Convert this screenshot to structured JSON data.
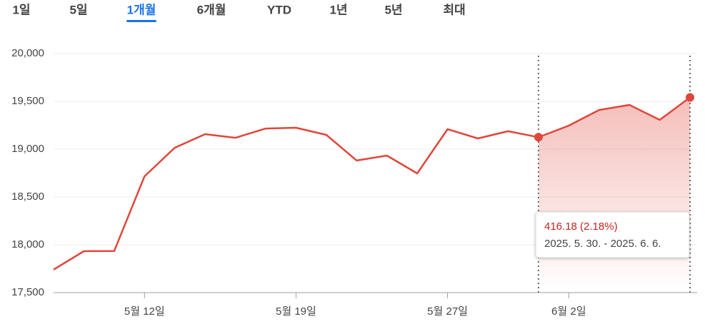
{
  "tabs": [
    "1일",
    "5일",
    "1개월",
    "6개월",
    "YTD",
    "1년",
    "5년",
    "최대"
  ],
  "selected_tab": 2,
  "chart_data": {
    "type": "line",
    "categories": [
      null,
      null,
      null,
      "5월 12일",
      null,
      null,
      null,
      null,
      "5월 19일",
      null,
      null,
      null,
      null,
      "5월 27일",
      null,
      null,
      null,
      "6월 2일",
      null,
      null,
      null,
      null
    ],
    "series": [
      {
        "color": "#e0463a",
        "values": [
          17740,
          17933,
          17935,
          18716,
          19015,
          19157,
          19119,
          19216,
          19224,
          19149,
          18881,
          18933,
          18746,
          19209,
          19112,
          19187,
          19125,
          19246,
          19410,
          19463,
          19306,
          19541
        ]
      }
    ],
    "ylim": [
      17500,
      20000
    ],
    "yticks": [
      {
        "value": 17500,
        "label": "17,500"
      },
      {
        "value": 18000,
        "label": "18,000"
      },
      {
        "value": 18500,
        "label": "18,500"
      },
      {
        "value": 19000,
        "label": "19,000"
      },
      {
        "value": 19500,
        "label": "19,500"
      },
      {
        "value": 20000,
        "label": "20,000"
      }
    ],
    "grid": true,
    "highlight_range": [
      16,
      21
    ],
    "tooltip": {
      "change": "416.18 (2.18%)",
      "period": "2025. 5. 30. - 2025. 6. 6."
    }
  }
}
